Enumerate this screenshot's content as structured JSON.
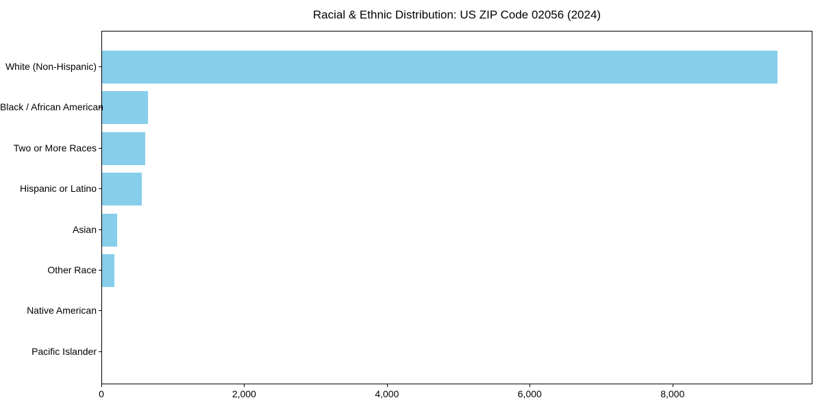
{
  "page": {
    "background_color": "#ffffff",
    "text_color": "#000000"
  },
  "chart_data": {
    "type": "bar",
    "orientation": "horizontal",
    "title": "Racial & Ethnic Distribution: US ZIP Code 02056 (2024)",
    "categories": [
      "White (Non-Hispanic)",
      "Black / African American",
      "Two or More Races",
      "Hispanic or Latino",
      "Asian",
      "Other Race",
      "Native American",
      "Pacific Islander"
    ],
    "values": [
      9480,
      640,
      610,
      555,
      210,
      170,
      0,
      0
    ],
    "xlabel": "",
    "ylabel": "",
    "xlim": [
      0,
      9960
    ],
    "x_ticks": [
      0,
      2000,
      4000,
      6000,
      8000
    ],
    "x_tick_labels": [
      "0",
      "2,000",
      "4,000",
      "6,000",
      "8,000"
    ],
    "bar_color": "#87CEEB",
    "grid": false,
    "legend_position": "none",
    "spines": "full-box"
  }
}
